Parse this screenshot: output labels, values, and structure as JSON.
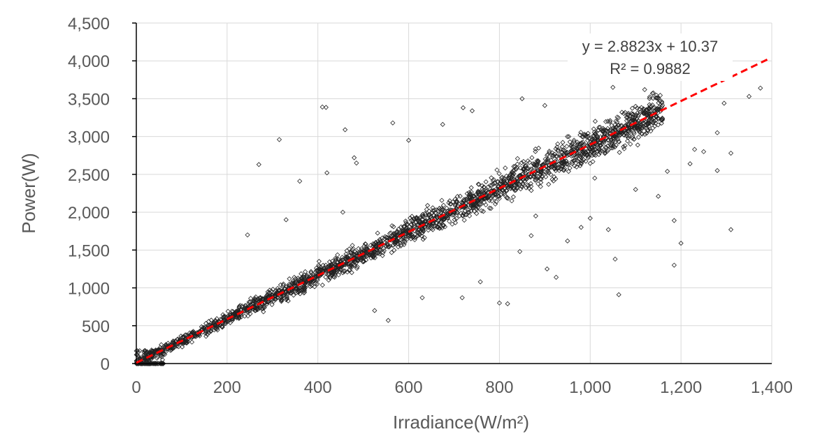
{
  "chart_data": {
    "type": "scatter",
    "xlabel": "Irradiance(W/m²)",
    "ylabel": "Power(W)",
    "xlim": [
      0,
      1400
    ],
    "ylim": [
      0,
      4500
    ],
    "x_ticks": [
      "0",
      "200",
      "400",
      "600",
      "800",
      "1,000",
      "1,200",
      "1,400"
    ],
    "y_ticks": [
      "0",
      "500",
      "1,000",
      "1,500",
      "2,000",
      "2,500",
      "3,000",
      "3,500",
      "4,000",
      "4,500"
    ],
    "grid": true,
    "marker": "diamond-open",
    "trendline": {
      "type": "linear",
      "slope": 2.8823,
      "intercept": 10.37,
      "equation": "y = 2.8823x + 10.37",
      "r_squared": "R² = 0.9882",
      "color": "#ff0000",
      "style": "dashed"
    },
    "outliers": [
      {
        "x": 315,
        "y": 2960
      },
      {
        "x": 410,
        "y": 3390
      },
      {
        "x": 418,
        "y": 3385
      },
      {
        "x": 460,
        "y": 3090
      },
      {
        "x": 270,
        "y": 2630
      },
      {
        "x": 480,
        "y": 2720
      },
      {
        "x": 485,
        "y": 2650
      },
      {
        "x": 420,
        "y": 2520
      },
      {
        "x": 565,
        "y": 3180
      },
      {
        "x": 600,
        "y": 2950
      },
      {
        "x": 675,
        "y": 3160
      },
      {
        "x": 720,
        "y": 3380
      },
      {
        "x": 740,
        "y": 3340
      },
      {
        "x": 360,
        "y": 2410
      },
      {
        "x": 455,
        "y": 2000
      },
      {
        "x": 245,
        "y": 1700
      },
      {
        "x": 330,
        "y": 1900
      },
      {
        "x": 525,
        "y": 700
      },
      {
        "x": 555,
        "y": 570
      },
      {
        "x": 630,
        "y": 870
      },
      {
        "x": 718,
        "y": 870
      },
      {
        "x": 758,
        "y": 1080
      },
      {
        "x": 800,
        "y": 800
      },
      {
        "x": 818,
        "y": 790
      },
      {
        "x": 845,
        "y": 1480
      },
      {
        "x": 905,
        "y": 1250
      },
      {
        "x": 925,
        "y": 1140
      },
      {
        "x": 1063,
        "y": 910
      },
      {
        "x": 1055,
        "y": 1380
      },
      {
        "x": 1185,
        "y": 1300
      },
      {
        "x": 1200,
        "y": 1590
      },
      {
        "x": 1310,
        "y": 1770
      },
      {
        "x": 1185,
        "y": 1890
      },
      {
        "x": 1220,
        "y": 2640
      },
      {
        "x": 1280,
        "y": 2550
      },
      {
        "x": 1295,
        "y": 3440
      },
      {
        "x": 1350,
        "y": 3530
      },
      {
        "x": 1375,
        "y": 3640
      },
      {
        "x": 1310,
        "y": 2780
      },
      {
        "x": 1280,
        "y": 3050
      },
      {
        "x": 1050,
        "y": 3650
      },
      {
        "x": 1120,
        "y": 3620
      },
      {
        "x": 850,
        "y": 3500
      },
      {
        "x": 900,
        "y": 3410
      },
      {
        "x": 1000,
        "y": 1920
      },
      {
        "x": 1040,
        "y": 1770
      },
      {
        "x": 1100,
        "y": 2300
      },
      {
        "x": 1150,
        "y": 2210
      },
      {
        "x": 980,
        "y": 1800
      },
      {
        "x": 950,
        "y": 1620
      },
      {
        "x": 880,
        "y": 1950
      },
      {
        "x": 870,
        "y": 1690
      },
      {
        "x": 1010,
        "y": 2450
      },
      {
        "x": 1230,
        "y": 2830
      },
      {
        "x": 1170,
        "y": 2540
      },
      {
        "x": 1250,
        "y": 2800
      }
    ]
  }
}
